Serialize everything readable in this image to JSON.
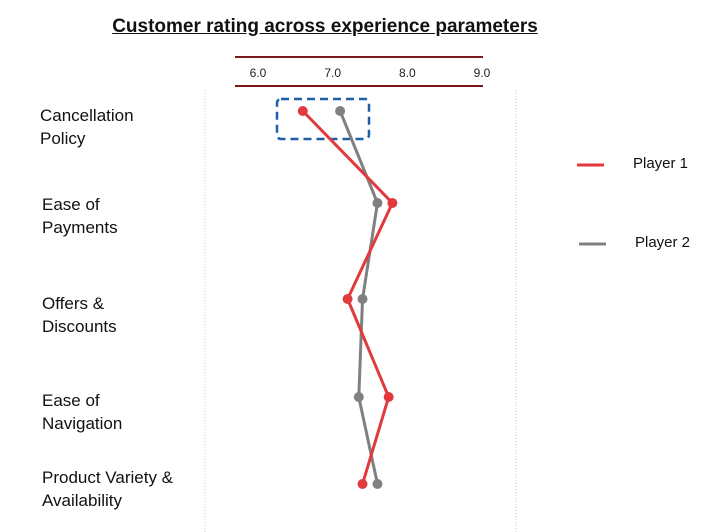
{
  "title": "Customer rating across experience parameters",
  "chart_data": {
    "type": "line",
    "orientation": "horizontal-values",
    "title": "Customer rating across experience parameters",
    "xlim": [
      5.7,
      9.0
    ],
    "xticks": [
      "6.0",
      "7.0",
      "8.0",
      "9.0"
    ],
    "categories": [
      "Cancellation\nPolicy",
      "Ease of\nPayments",
      "Offers &\nDiscounts",
      "Ease of\nNavigation",
      "Product Variety &\nAvailability"
    ],
    "series": [
      {
        "name": "Player 1",
        "color": "#e03a3e",
        "values": [
          6.6,
          7.8,
          7.2,
          7.75,
          7.4
        ]
      },
      {
        "name": "Player 2",
        "color": "#808080",
        "values": [
          7.1,
          7.6,
          7.4,
          7.35,
          7.6
        ]
      }
    ],
    "highlight": {
      "category": "Cancellation\nPolicy",
      "color": "#1f5fa8",
      "style": "dashed"
    },
    "legend_position": "right"
  }
}
